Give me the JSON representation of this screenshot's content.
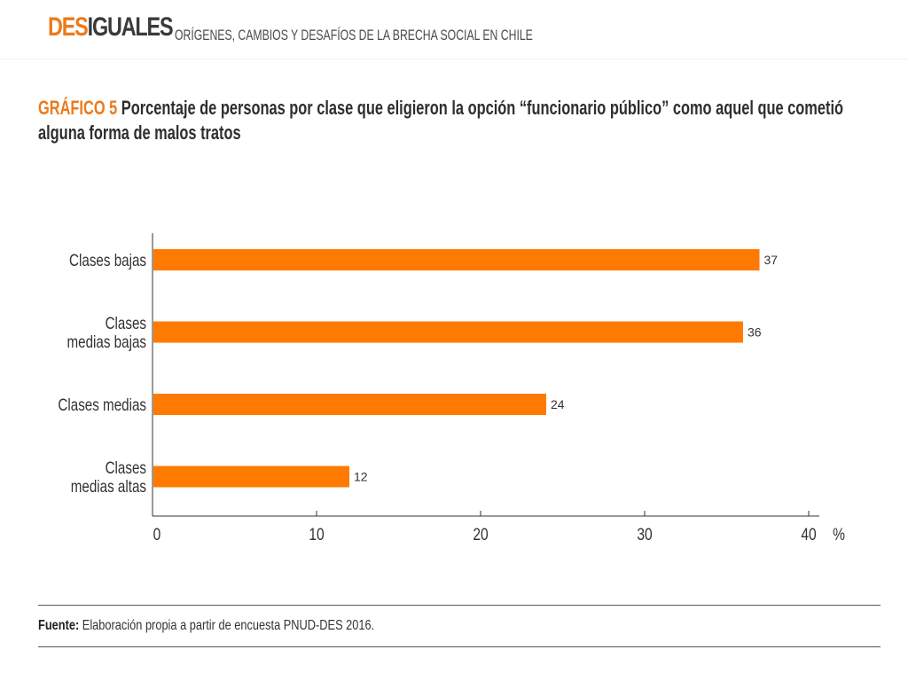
{
  "header": {
    "brand_accent": "DES",
    "brand_rest": "IGUALES",
    "subtitle": "ORÍGENES, CAMBIOS Y DESAFÍOS DE LA BRECHA SOCIAL EN CHILE"
  },
  "chart_title": {
    "label": "GRÁFICO 5",
    "text": "Porcentaje de personas por clase que eligieron la opción “funcionario público” como aquel que cometió alguna forma de malos tratos"
  },
  "colors": {
    "accent": "#ec7a1c",
    "bar": "#ff7a00",
    "text": "#333333"
  },
  "chart_data": {
    "type": "bar",
    "orientation": "horizontal",
    "title": "GRÁFICO 5 Porcentaje de personas por clase que eligieron la opción “funcionario público” como aquel que cometió alguna forma de malos tratos",
    "categories": [
      [
        "Clases bajas"
      ],
      [
        "Clases",
        "medias bajas"
      ],
      [
        "Clases medias"
      ],
      [
        "Clases",
        "medias altas"
      ]
    ],
    "values": [
      37,
      36,
      24,
      12
    ],
    "data_labels": [
      "37",
      "36",
      "24",
      "12"
    ],
    "xlim": [
      0,
      40
    ],
    "xticks": [
      0,
      10,
      20,
      30,
      40
    ],
    "xunit": "%",
    "xlabel": "",
    "ylabel": "",
    "grid": false,
    "legend": "none"
  },
  "source": {
    "label": "Fuente:",
    "text": " Elaboración propia a partir de encuesta PNUD-DES 2016."
  }
}
